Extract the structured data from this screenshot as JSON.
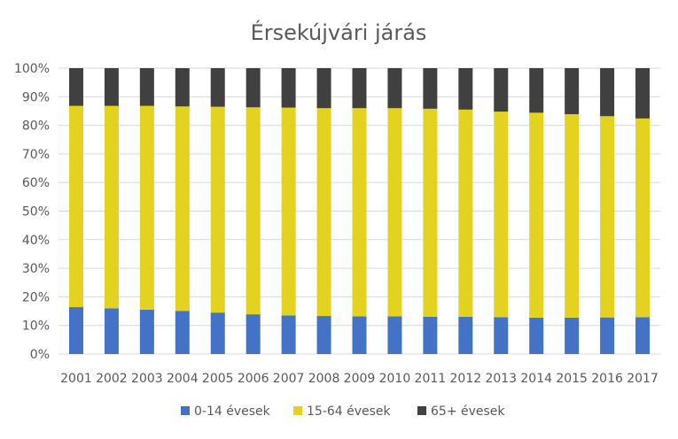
{
  "chart_data": {
    "type": "bar",
    "stacked": "percent",
    "title": "Érsekújvári járás",
    "categories": [
      "2001",
      "2002",
      "2003",
      "2004",
      "2005",
      "2006",
      "2007",
      "2008",
      "2009",
      "2010",
      "2011",
      "2012",
      "2013",
      "2014",
      "2015",
      "2016",
      "2017"
    ],
    "series": [
      {
        "name": "0-14 évesek",
        "color": "#4472C4",
        "values": [
          16.4,
          16.0,
          15.5,
          15.1,
          14.5,
          13.9,
          13.5,
          13.3,
          13.2,
          13.2,
          13.0,
          13.0,
          12.9,
          12.7,
          12.7,
          12.8,
          12.9
        ]
      },
      {
        "name": "15-64 évesek",
        "color": "#E3D320",
        "values": [
          70.4,
          70.8,
          71.3,
          71.5,
          72.0,
          72.4,
          72.7,
          72.7,
          72.8,
          72.8,
          72.8,
          72.5,
          71.9,
          71.7,
          71.2,
          70.4,
          69.5
        ]
      },
      {
        "name": "65+ évesek",
        "color": "#404040",
        "values": [
          13.2,
          13.2,
          13.2,
          13.4,
          13.5,
          13.7,
          13.8,
          14.0,
          14.0,
          14.0,
          14.2,
          14.5,
          15.2,
          15.6,
          16.1,
          16.8,
          17.6
        ]
      }
    ],
    "ylim": [
      0,
      100
    ],
    "yticks": [
      "0%",
      "10%",
      "20%",
      "30%",
      "40%",
      "50%",
      "60%",
      "70%",
      "80%",
      "90%",
      "100%"
    ],
    "grid": true,
    "legend_position": "bottom"
  }
}
